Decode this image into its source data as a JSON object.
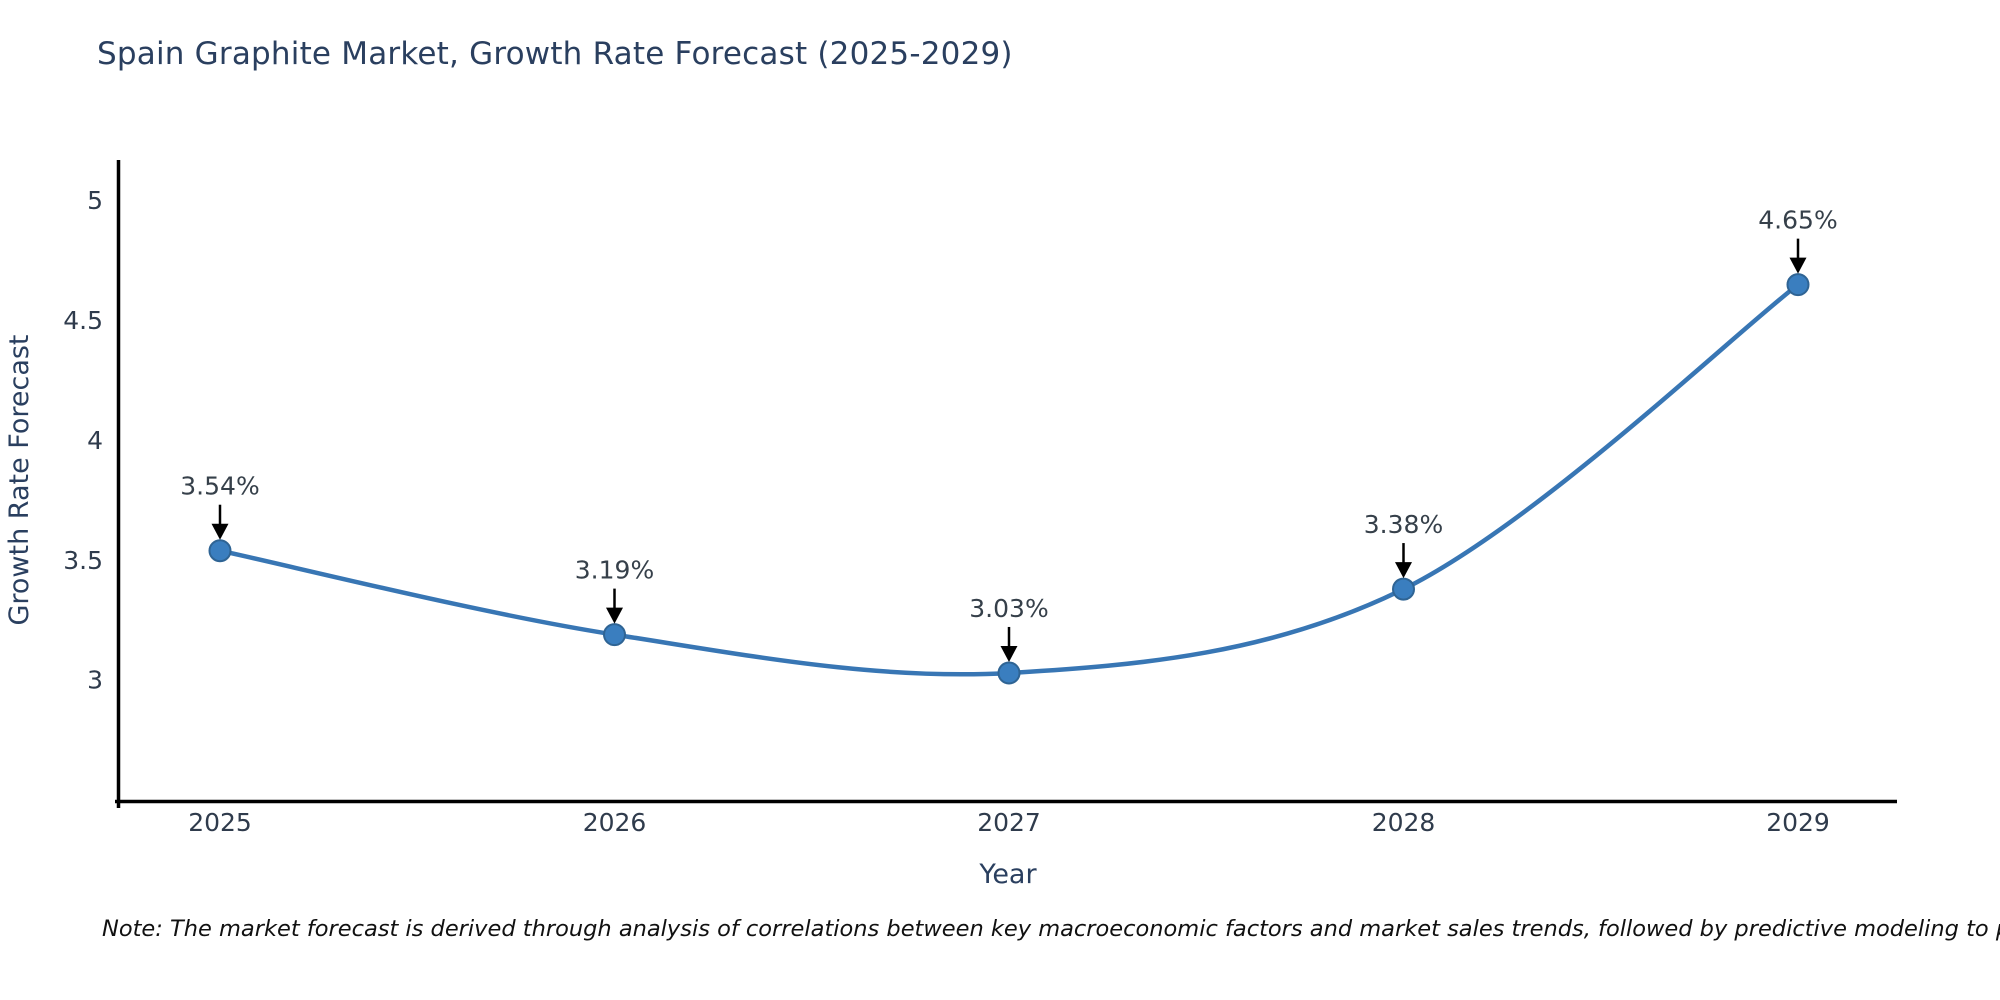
{
  "chart_data": {
    "type": "line",
    "title": "Spain Graphite Market, Growth Rate Forecast (2025-2029)",
    "xlabel": "Year",
    "ylabel": "Growth Rate Forecast",
    "x": [
      "2025",
      "2026",
      "2027",
      "2028",
      "2029"
    ],
    "y": [
      3.54,
      3.19,
      3.03,
      3.38,
      4.65
    ],
    "point_labels": [
      "3.54%",
      "3.19%",
      "3.03%",
      "3.38%",
      "4.65%"
    ],
    "yticks": [
      3,
      3.5,
      4,
      4.5,
      5
    ],
    "ytick_labels": [
      "3",
      "3.5",
      "4",
      "4.5",
      "5"
    ],
    "ylim": [
      2.5,
      5.17
    ],
    "grid": false,
    "legend_position": "none",
    "line_shape": "spline",
    "line_color": "#3876b4",
    "marker_color": "#3a7ebf",
    "marker_edge_color": "#2f6494",
    "axis_color": "#000000",
    "annotation_arrow_color": "#000000"
  },
  "note": "Note: The market forecast is derived through analysis of correlations between key macroeconomic factors and market sales trends, followed by predictive modeling to project future sales",
  "colors": {
    "title": "#2a3f5f",
    "tick": "#2f3b4c",
    "note": "#111111",
    "background": "#ffffff"
  }
}
